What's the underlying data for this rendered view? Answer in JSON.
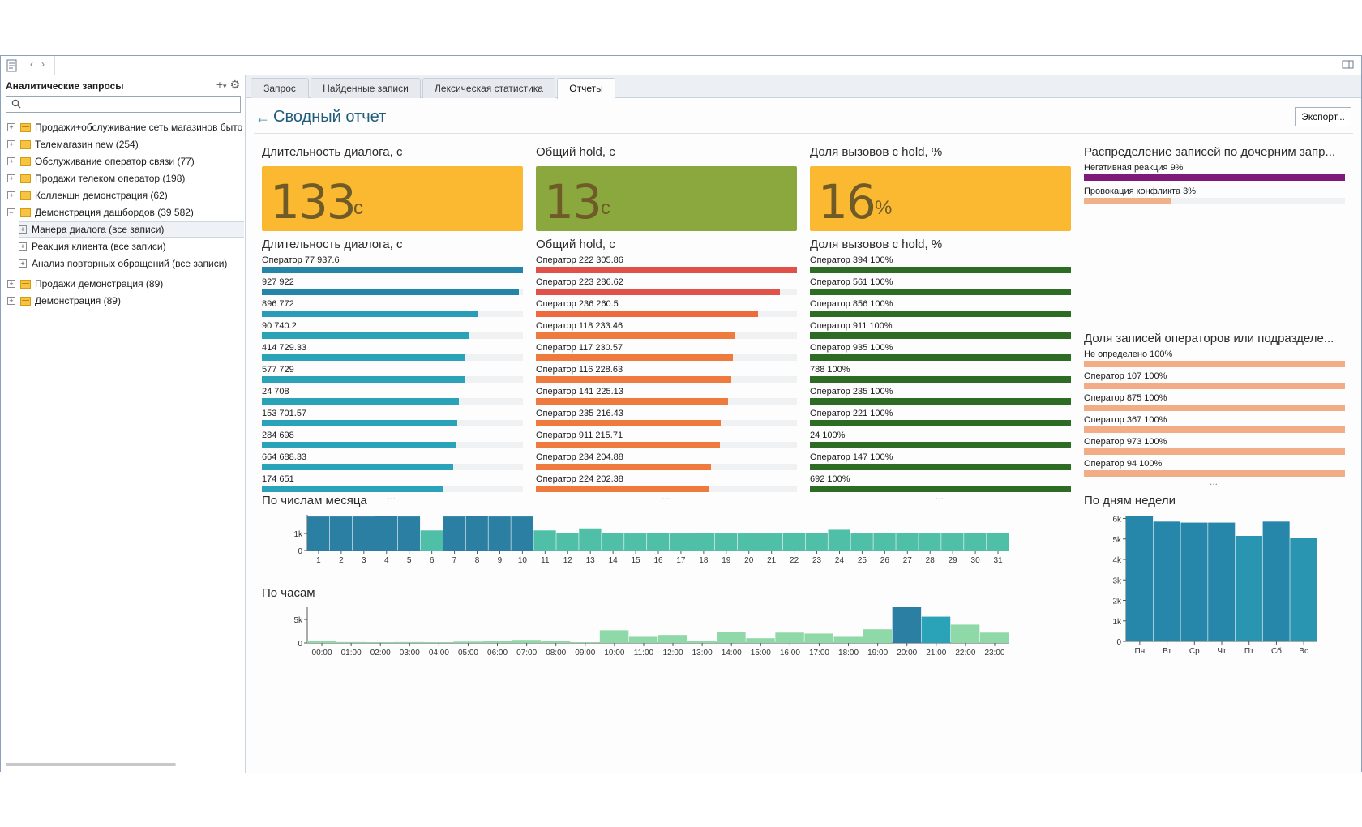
{
  "left_panel": {
    "title": "Аналитические запросы",
    "tools": "+· ⚙",
    "search_placeholder": "",
    "tree": [
      {
        "label": "Продажи+обслуживание сеть магазинов быто",
        "expander": "+",
        "folder": true,
        "indent": 0
      },
      {
        "label": "Телемагазин new (254)",
        "expander": "+",
        "folder": true,
        "indent": 0
      },
      {
        "label": "Обслуживание оператор связи (77)",
        "expander": "+",
        "folder": true,
        "indent": 0
      },
      {
        "label": "Продажи телеком оператор (198)",
        "expander": "+",
        "folder": true,
        "indent": 0
      },
      {
        "label": "Коллекшн демонстрация (62)",
        "expander": "+",
        "folder": true,
        "indent": 0
      },
      {
        "label": "Демонстрация дашбордов (39 582)",
        "expander": "−",
        "folder": true,
        "indent": 0
      },
      {
        "label": "Манера диалога (все записи)",
        "expander": "+",
        "folder": false,
        "indent": 1,
        "selected": true
      },
      {
        "label": "Реакция клиента (все записи)",
        "expander": "+",
        "folder": false,
        "indent": 1
      },
      {
        "label": "Анализ повторных обращений (все записи)",
        "expander": "+",
        "folder": false,
        "indent": 1
      },
      {
        "label": "Продажи демонстрация (89)",
        "expander": "+",
        "folder": true,
        "indent": 0
      },
      {
        "label": "Демонстрация (89)",
        "expander": "+",
        "folder": true,
        "indent": 0
      }
    ]
  },
  "tabs": [
    {
      "label": "Запрос",
      "active": false
    },
    {
      "label": "Найденные записи",
      "active": false
    },
    {
      "label": "Лексическая статистика",
      "active": false
    },
    {
      "label": "Отчеты",
      "active": true
    }
  ],
  "report": {
    "back_icon": "←",
    "title": "Сводный отчет",
    "export_label": "Экспорт..."
  },
  "kpis": [
    {
      "title": "Длительность диалога, с",
      "value": "133",
      "unit": "с",
      "color": "#fbb931"
    },
    {
      "title": "Общий hold, с",
      "value": "13",
      "unit": "с",
      "color": "#8aa83e"
    },
    {
      "title": "Доля вызовов с hold, %",
      "value": "16",
      "unit": "%",
      "color": "#fbb931"
    }
  ],
  "bar_lists": [
    {
      "title": "Длительность диалога, с",
      "ellipsis": "...",
      "rows": [
        {
          "label": "Оператор 77 937.6",
          "value": 1.0,
          "color": "#2485a8"
        },
        {
          "label": "927 922",
          "value": 0.985,
          "color": "#2485a8"
        },
        {
          "label": "896 772",
          "value": 0.826,
          "color": "#2a9bb8"
        },
        {
          "label": "90 740.2",
          "value": 0.793,
          "color": "#2aa3b8"
        },
        {
          "label": "414 729.33",
          "value": 0.779,
          "color": "#2aa3b8"
        },
        {
          "label": "577 729",
          "value": 0.779,
          "color": "#2aa3b8"
        },
        {
          "label": "24 708",
          "value": 0.755,
          "color": "#2aa3b8"
        },
        {
          "label": "153 701.57",
          "value": 0.749,
          "color": "#2aa3b8"
        },
        {
          "label": "284 698",
          "value": 0.746,
          "color": "#2aa3b8"
        },
        {
          "label": "664 688.33",
          "value": 0.733,
          "color": "#2aa3b8"
        },
        {
          "label": "174 651",
          "value": 0.696,
          "color": "#2aa3b8"
        }
      ]
    },
    {
      "title": "Общий hold, с",
      "ellipsis": "...",
      "rows": [
        {
          "label": "Оператор 222 305.86",
          "value": 1.0,
          "color": "#e2504a"
        },
        {
          "label": "Оператор 223 286.62",
          "value": 0.936,
          "color": "#e2504a"
        },
        {
          "label": "Оператор 236 260.5",
          "value": 0.851,
          "color": "#ee6a3c"
        },
        {
          "label": "Оператор 118 233.46",
          "value": 0.763,
          "color": "#ef7a3e"
        },
        {
          "label": "Оператор 117 230.57",
          "value": 0.754,
          "color": "#ef7a3e"
        },
        {
          "label": "Оператор 116 228.63",
          "value": 0.747,
          "color": "#ef7a3e"
        },
        {
          "label": "Оператор 141 225.13",
          "value": 0.736,
          "color": "#ef7a3e"
        },
        {
          "label": "Оператор 235 216.43",
          "value": 0.708,
          "color": "#ef7a3e"
        },
        {
          "label": "Оператор 911 215.71",
          "value": 0.705,
          "color": "#ef7a3e"
        },
        {
          "label": "Оператор 234 204.88",
          "value": 0.67,
          "color": "#ef7a3e"
        },
        {
          "label": "Оператор 224 202.38",
          "value": 0.662,
          "color": "#ef7a3e"
        }
      ]
    },
    {
      "title": "Доля вызовов с hold, %",
      "ellipsis": "...",
      "rows": [
        {
          "label": "Оператор 394 100%",
          "value": 1.0,
          "color": "#2e6b24"
        },
        {
          "label": "Оператор 561 100%",
          "value": 1.0,
          "color": "#2e6b24"
        },
        {
          "label": "Оператор 856 100%",
          "value": 1.0,
          "color": "#2e6b24"
        },
        {
          "label": "Оператор 911 100%",
          "value": 1.0,
          "color": "#2e6b24"
        },
        {
          "label": "Оператор 935 100%",
          "value": 1.0,
          "color": "#2e6b24"
        },
        {
          "label": "788 100%",
          "value": 1.0,
          "color": "#2e6b24"
        },
        {
          "label": "Оператор 235 100%",
          "value": 1.0,
          "color": "#2e6b24"
        },
        {
          "label": "Оператор 221 100%",
          "value": 1.0,
          "color": "#2e6b24"
        },
        {
          "label": "24 100%",
          "value": 1.0,
          "color": "#2e6b24"
        },
        {
          "label": "Оператор 147 100%",
          "value": 1.0,
          "color": "#2e6b24"
        },
        {
          "label": "692 100%",
          "value": 1.0,
          "color": "#2e6b24"
        }
      ]
    }
  ],
  "distribution": {
    "title": "Распределение записей по дочерним запр...",
    "rows": [
      {
        "label": "Негативная реакция 9%",
        "value": 1.0,
        "color": "#7e1b7a"
      },
      {
        "label": "Провокация конфликта 3%",
        "value": 0.333,
        "color": "#f0b08a"
      }
    ]
  },
  "operators_share": {
    "title": "Доля записей операторов или подразделе...",
    "ellipsis": "...",
    "rows": [
      {
        "label": "Не определено 100%",
        "value": 1.0,
        "color": "#f2ad87"
      },
      {
        "label": "Оператор 107 100%",
        "value": 1.0,
        "color": "#f2ad87"
      },
      {
        "label": "Оператор 875 100%",
        "value": 1.0,
        "color": "#f2ad87"
      },
      {
        "label": "Оператор 367 100%",
        "value": 1.0,
        "color": "#f2ad87"
      },
      {
        "label": "Оператор 973 100%",
        "value": 1.0,
        "color": "#f2ad87"
      },
      {
        "label": "Оператор 94 100%",
        "value": 1.0,
        "color": "#f2ad87"
      }
    ]
  },
  "chart_data": [
    {
      "id": "by_day_of_month",
      "type": "bar",
      "title": "По числам месяца",
      "categories": [
        "1",
        "2",
        "3",
        "4",
        "5",
        "6",
        "7",
        "8",
        "9",
        "10",
        "11",
        "12",
        "13",
        "14",
        "15",
        "16",
        "17",
        "18",
        "19",
        "20",
        "21",
        "22",
        "23",
        "24",
        "25",
        "26",
        "27",
        "28",
        "29",
        "30",
        "31"
      ],
      "values": [
        2000,
        2000,
        2000,
        2050,
        2000,
        1180,
        2000,
        2050,
        2000,
        2000,
        1180,
        1050,
        1300,
        1050,
        1000,
        1050,
        1000,
        1050,
        1000,
        1000,
        1000,
        1050,
        1050,
        1220,
        1000,
        1050,
        1050,
        1000,
        1000,
        1050,
        1050
      ],
      "ylim": [
        0,
        2100
      ],
      "yticks": [
        0,
        1000
      ],
      "ytick_labels": [
        "0",
        "1k"
      ],
      "colors": {
        "high": "#2a7fa3",
        "low": "#4fbfa8",
        "mid": "#2aa3a8"
      }
    },
    {
      "id": "by_hour",
      "type": "bar",
      "title": "По часам",
      "categories": [
        "00:00",
        "01:00",
        "02:00",
        "03:00",
        "04:00",
        "05:00",
        "06:00",
        "07:00",
        "08:00",
        "09:00",
        "10:00",
        "11:00",
        "12:00",
        "13:00",
        "14:00",
        "15:00",
        "16:00",
        "17:00",
        "18:00",
        "19:00",
        "20:00",
        "21:00",
        "22:00",
        "23:00"
      ],
      "values": [
        500,
        200,
        150,
        200,
        150,
        300,
        450,
        650,
        500,
        150,
        2700,
        1300,
        1700,
        400,
        2300,
        1000,
        2200,
        2000,
        1300,
        2900,
        7600,
        5600,
        3900,
        2200
      ],
      "ylim": [
        0,
        7600
      ],
      "yticks": [
        0,
        5000
      ],
      "ytick_labels": [
        "0",
        "5k"
      ],
      "colors": {
        "high": "#2a7fa3",
        "low": "#8fd8a8",
        "mid": "#2aa3b8"
      }
    },
    {
      "id": "by_weekday",
      "type": "bar",
      "title": "По дням недели",
      "categories": [
        "Пн",
        "Вт",
        "Ср",
        "Чт",
        "Пт",
        "Сб",
        "Вс"
      ],
      "values": [
        6100,
        5850,
        5800,
        5800,
        5150,
        5850,
        5050
      ],
      "ylim": [
        0,
        6100
      ],
      "yticks": [
        0,
        1000,
        2000,
        3000,
        4000,
        5000,
        6000
      ],
      "ytick_labels": [
        "0",
        "1k",
        "2k",
        "3k",
        "4k",
        "5k",
        "6k"
      ],
      "colors": {
        "high": "#2787aa",
        "low": "#2aa3b8",
        "mid": "#2a95b0"
      }
    }
  ]
}
